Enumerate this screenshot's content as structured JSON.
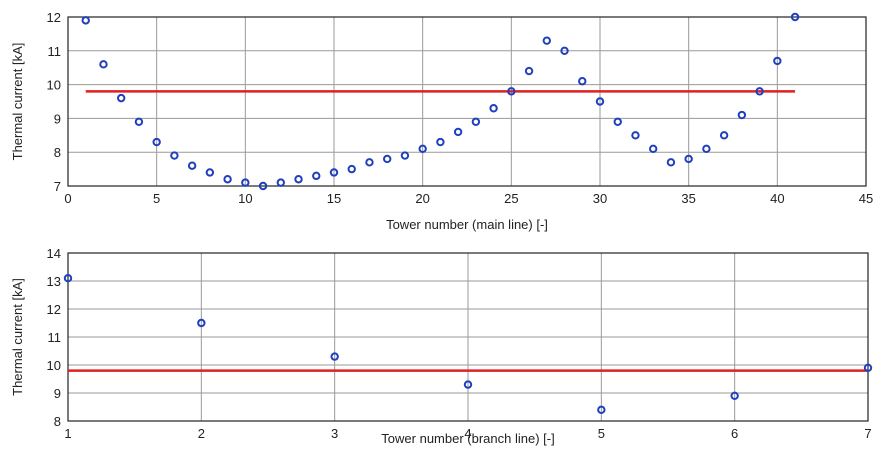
{
  "chart_data": [
    {
      "type": "scatter",
      "xlabel": "Tower number (main line) [-]",
      "ylabel": "Thermal current [kA]",
      "xlim": [
        0,
        45
      ],
      "ylim": [
        7,
        12
      ],
      "xticks": [
        0,
        5,
        10,
        15,
        20,
        25,
        30,
        35,
        40,
        45
      ],
      "yticks": [
        7,
        8,
        9,
        10,
        11,
        12
      ],
      "grid": true,
      "series": [
        {
          "marker": "circle",
          "color": "#1f3fbf",
          "x": [
            1,
            2,
            3,
            4,
            5,
            6,
            7,
            8,
            9,
            10,
            11,
            12,
            13,
            14,
            15,
            16,
            17,
            18,
            19,
            20,
            21,
            22,
            23,
            24,
            25,
            26,
            27,
            28,
            29,
            30,
            31,
            32,
            33,
            34,
            35,
            36,
            37,
            38,
            39,
            40,
            41
          ],
          "y": [
            11.9,
            10.6,
            9.6,
            8.9,
            8.3,
            7.9,
            7.6,
            7.4,
            7.2,
            7.1,
            7.0,
            7.1,
            7.2,
            7.3,
            7.4,
            7.5,
            7.7,
            7.8,
            7.9,
            8.1,
            8.3,
            8.6,
            8.9,
            9.3,
            9.8,
            10.4,
            11.3,
            11.0,
            10.1,
            9.5,
            8.9,
            8.5,
            8.1,
            7.7,
            7.8,
            8.1,
            8.5,
            9.1,
            9.8,
            10.7,
            12.0
          ]
        }
      ],
      "reference_line": {
        "y": 9.8,
        "x_from": 1,
        "x_to": 41,
        "color": "#e02020"
      }
    },
    {
      "type": "scatter",
      "xlabel": "Tower number (branch line) [-]",
      "ylabel": "Thermal current [kA]",
      "xlim": [
        1,
        7
      ],
      "ylim": [
        8,
        14
      ],
      "xticks": [
        1,
        2,
        3,
        4,
        5,
        6,
        7
      ],
      "yticks": [
        8,
        9,
        10,
        11,
        12,
        13,
        14
      ],
      "grid": true,
      "series": [
        {
          "marker": "circle",
          "color": "#1f3fbf",
          "x": [
            1,
            2,
            3,
            4,
            5,
            6,
            7
          ],
          "y": [
            13.1,
            11.5,
            10.3,
            9.3,
            8.4,
            8.9,
            9.9
          ]
        }
      ],
      "reference_line": {
        "y": 9.8,
        "x_from": 1,
        "x_to": 7,
        "color": "#e02020"
      }
    }
  ]
}
